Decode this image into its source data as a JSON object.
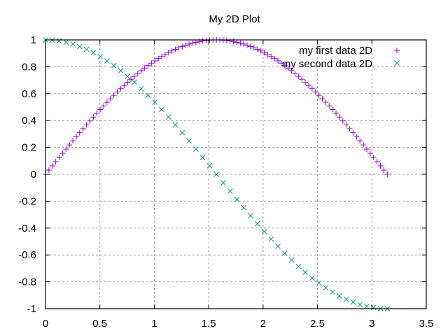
{
  "chart_data": {
    "type": "scatter",
    "title": "My 2D Plot",
    "xlabel": "",
    "ylabel": "",
    "xlim": [
      0,
      3.5
    ],
    "ylim": [
      -1,
      1
    ],
    "xticks": [
      "0",
      "0.5",
      "1",
      "1.5",
      "2",
      "2.5",
      "3",
      "3.5"
    ],
    "yticks": [
      "1",
      "0.8",
      "0.6",
      "0.4",
      "0.2",
      "0",
      "-0.2",
      "-0.4",
      "-0.6",
      "-0.8",
      "-1"
    ],
    "grid": true,
    "legend_position": "top-right",
    "series": [
      {
        "name": "my first data 2D",
        "marker": "plus",
        "color": "#9400d3",
        "x_start": 0,
        "x_step": 0.0314159,
        "values": [
          0,
          0.031,
          0.063,
          0.094,
          0.125,
          0.156,
          0.187,
          0.218,
          0.249,
          0.279,
          0.309,
          0.339,
          0.368,
          0.397,
          0.426,
          0.454,
          0.482,
          0.509,
          0.536,
          0.562,
          0.588,
          0.613,
          0.637,
          0.661,
          0.685,
          0.707,
          0.729,
          0.75,
          0.771,
          0.79,
          0.809,
          0.827,
          0.844,
          0.861,
          0.876,
          0.891,
          0.905,
          0.918,
          0.93,
          0.941,
          0.951,
          0.96,
          0.969,
          0.976,
          0.982,
          0.988,
          0.992,
          0.996,
          0.998,
          1.0,
          1.0,
          1.0,
          0.998,
          0.996,
          0.992,
          0.988,
          0.982,
          0.976,
          0.969,
          0.96,
          0.951,
          0.941,
          0.93,
          0.918,
          0.905,
          0.891,
          0.876,
          0.861,
          0.844,
          0.827,
          0.809,
          0.79,
          0.771,
          0.75,
          0.729,
          0.707,
          0.685,
          0.661,
          0.637,
          0.613,
          0.588,
          0.562,
          0.536,
          0.509,
          0.482,
          0.454,
          0.426,
          0.397,
          0.368,
          0.339,
          0.309,
          0.279,
          0.249,
          0.218,
          0.187,
          0.156,
          0.125,
          0.094,
          0.063,
          0.031,
          0
        ]
      },
      {
        "name": "my second data 2D",
        "marker": "cross",
        "color": "#009e73",
        "x_start": 0,
        "x_step": 0.0628319,
        "values": [
          1,
          0.998,
          0.992,
          0.982,
          0.969,
          0.951,
          0.93,
          0.905,
          0.876,
          0.844,
          0.809,
          0.771,
          0.729,
          0.685,
          0.637,
          0.588,
          0.536,
          0.482,
          0.426,
          0.368,
          0.309,
          0.249,
          0.187,
          0.125,
          0.063,
          0,
          -0.063,
          -0.125,
          -0.187,
          -0.249,
          -0.309,
          -0.368,
          -0.426,
          -0.482,
          -0.536,
          -0.588,
          -0.637,
          -0.685,
          -0.729,
          -0.771,
          -0.809,
          -0.844,
          -0.876,
          -0.905,
          -0.93,
          -0.951,
          -0.969,
          -0.982,
          -0.992,
          -0.998,
          -1
        ]
      }
    ]
  }
}
